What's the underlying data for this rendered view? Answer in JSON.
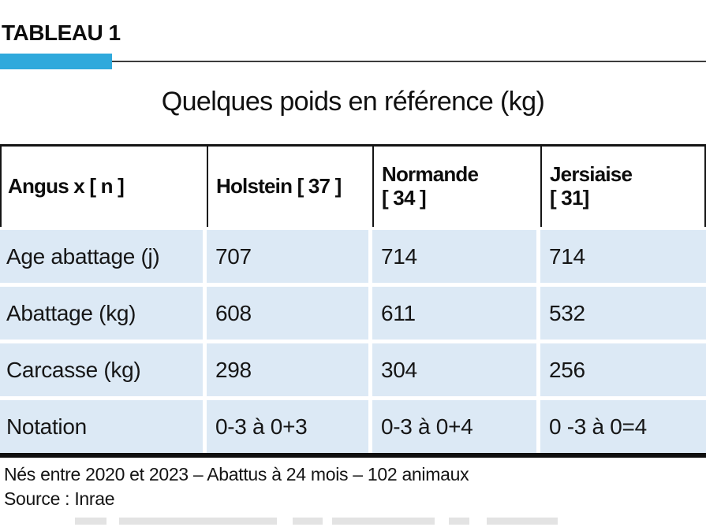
{
  "tag": {
    "label": "TABLEAU 1",
    "accent_color": "#2fa9dc"
  },
  "title": "Quelques poids en référence (kg)",
  "table": {
    "header": {
      "col0": "Angus x [ n ]",
      "col1": "Holstein [ 37 ]",
      "col2": "Normande\n [ 34 ]",
      "col3": "Jersiaise\n[ 31]"
    },
    "rows": [
      {
        "label": "Age abattage (j)",
        "values": [
          "707",
          "714",
          "714"
        ]
      },
      {
        "label": "Abattage (kg)",
        "values": [
          "608",
          "611",
          "532"
        ]
      },
      {
        "label": "Carcasse (kg)",
        "values": [
          "298",
          "304",
          "256"
        ]
      },
      {
        "label": "Notation",
        "values": [
          "0-3 à 0+3",
          "0-3 à 0+4",
          "0 -3 à 0=4"
        ]
      }
    ],
    "cell_color": "#dce9f5",
    "border_color": "#141414"
  },
  "footer": {
    "note": "Nés entre 2020 et 2023 – Abattus à  24 mois – 102 animaux",
    "source": "Source : Inrae"
  }
}
